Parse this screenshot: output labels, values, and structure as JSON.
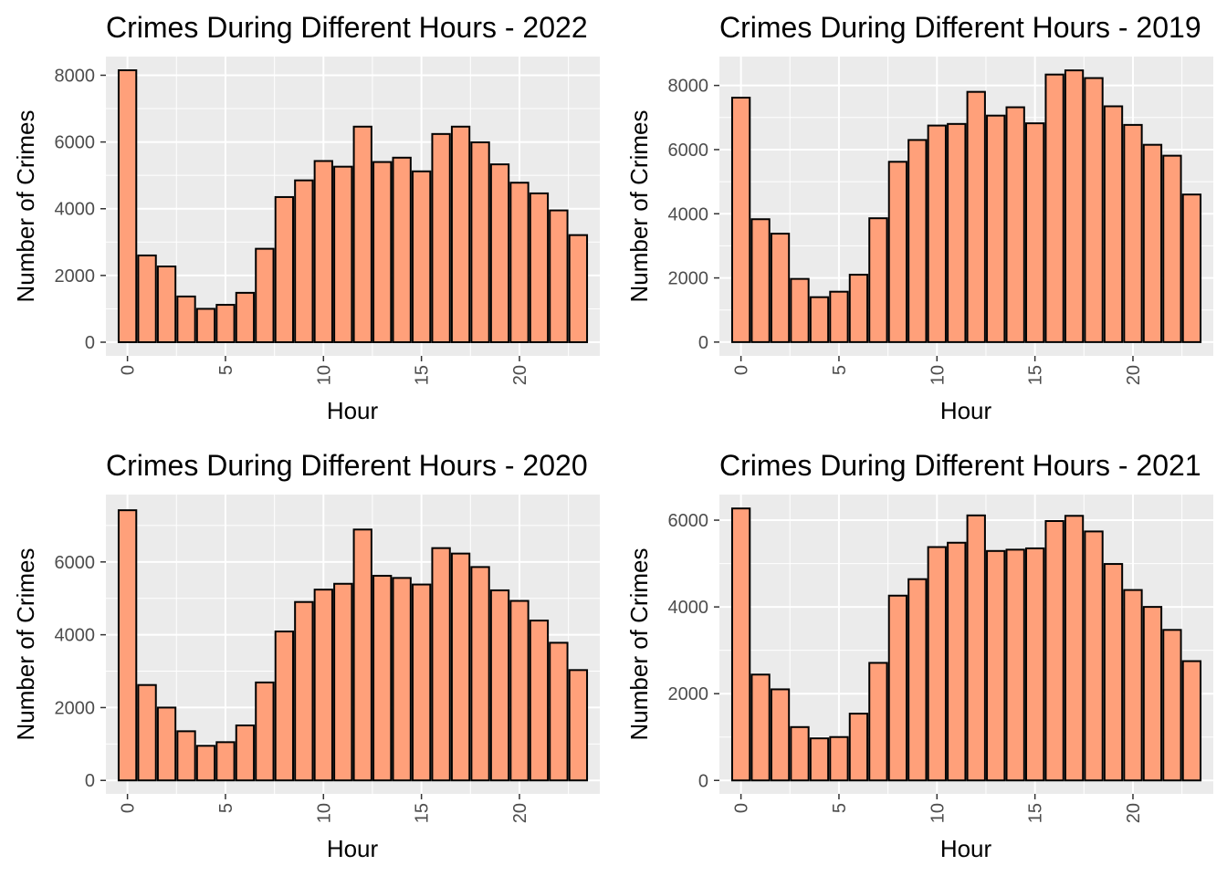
{
  "chart_data": [
    {
      "type": "bar",
      "title": "Crimes During Different Hours - 2022",
      "xlabel": "Hour",
      "ylabel": "Number of Crimes",
      "x": [
        0,
        1,
        2,
        3,
        4,
        5,
        6,
        7,
        8,
        9,
        10,
        11,
        12,
        13,
        14,
        15,
        16,
        17,
        18,
        19,
        20,
        21,
        22,
        23
      ],
      "values": [
        8150,
        2600,
        2270,
        1370,
        1000,
        1120,
        1480,
        2800,
        4350,
        4850,
        5430,
        5260,
        6460,
        5400,
        5530,
        5120,
        6240,
        6460,
        5990,
        5330,
        4780,
        4460,
        3950,
        3210
      ],
      "xticks": [
        0,
        5,
        10,
        15,
        20
      ],
      "yticks": [
        0,
        2000,
        4000,
        6000,
        8000
      ],
      "xlim": [
        -1.1,
        24.1
      ],
      "ylim": [
        -410,
        8560
      ],
      "grid": true,
      "bar_color": "#ffa07a",
      "bar_border": "#000000",
      "panel_color": "#ebebeb"
    },
    {
      "type": "bar",
      "title": "Crimes During Different Hours - 2019",
      "xlabel": "Hour",
      "ylabel": "Number of Crimes",
      "x": [
        0,
        1,
        2,
        3,
        4,
        5,
        6,
        7,
        8,
        9,
        10,
        11,
        12,
        13,
        14,
        15,
        16,
        17,
        18,
        19,
        20,
        21,
        22,
        23
      ],
      "values": [
        7620,
        3830,
        3380,
        1970,
        1400,
        1570,
        2100,
        3860,
        5620,
        6300,
        6750,
        6800,
        7800,
        7060,
        7320,
        6820,
        8340,
        8470,
        8230,
        7350,
        6770,
        6150,
        5810,
        4600
      ],
      "xticks": [
        0,
        5,
        10,
        15,
        20
      ],
      "yticks": [
        0,
        2000,
        4000,
        6000,
        8000
      ],
      "xlim": [
        -1.1,
        24.1
      ],
      "ylim": [
        -430,
        8900
      ],
      "grid": true,
      "bar_color": "#ffa07a",
      "bar_border": "#000000",
      "panel_color": "#ebebeb"
    },
    {
      "type": "bar",
      "title": "Crimes During Different Hours - 2020",
      "xlabel": "Hour",
      "ylabel": "Number of Crimes",
      "x": [
        0,
        1,
        2,
        3,
        4,
        5,
        6,
        7,
        8,
        9,
        10,
        11,
        12,
        13,
        14,
        15,
        16,
        17,
        18,
        19,
        20,
        21,
        22,
        23
      ],
      "values": [
        7420,
        2620,
        2000,
        1350,
        950,
        1050,
        1510,
        2690,
        4090,
        4900,
        5240,
        5400,
        6890,
        5620,
        5560,
        5380,
        6380,
        6230,
        5860,
        5220,
        4930,
        4390,
        3780,
        3030
      ],
      "xticks": [
        0,
        5,
        10,
        15,
        20
      ],
      "yticks": [
        0,
        2000,
        4000,
        6000
      ],
      "xlim": [
        -1.1,
        24.1
      ],
      "ylim": [
        -370,
        7850
      ],
      "grid": true,
      "bar_color": "#ffa07a",
      "bar_border": "#000000",
      "panel_color": "#ebebeb"
    },
    {
      "type": "bar",
      "title": "Crimes During Different Hours - 2021",
      "xlabel": "Hour",
      "ylabel": "Number of Crimes",
      "x": [
        0,
        1,
        2,
        3,
        4,
        5,
        6,
        7,
        8,
        9,
        10,
        11,
        12,
        13,
        14,
        15,
        16,
        17,
        18,
        19,
        20,
        21,
        22,
        23
      ],
      "values": [
        6270,
        2440,
        2100,
        1230,
        970,
        1000,
        1540,
        2710,
        4260,
        4640,
        5380,
        5480,
        6110,
        5290,
        5320,
        5350,
        5980,
        6100,
        5740,
        4990,
        4390,
        4000,
        3470,
        2750
      ],
      "xticks": [
        0,
        5,
        10,
        15,
        20
      ],
      "yticks": [
        0,
        2000,
        4000,
        6000
      ],
      "xlim": [
        -1.1,
        24.1
      ],
      "ylim": [
        -310,
        6590
      ],
      "grid": true,
      "bar_color": "#ffa07a",
      "bar_border": "#000000",
      "panel_color": "#ebebeb"
    }
  ]
}
